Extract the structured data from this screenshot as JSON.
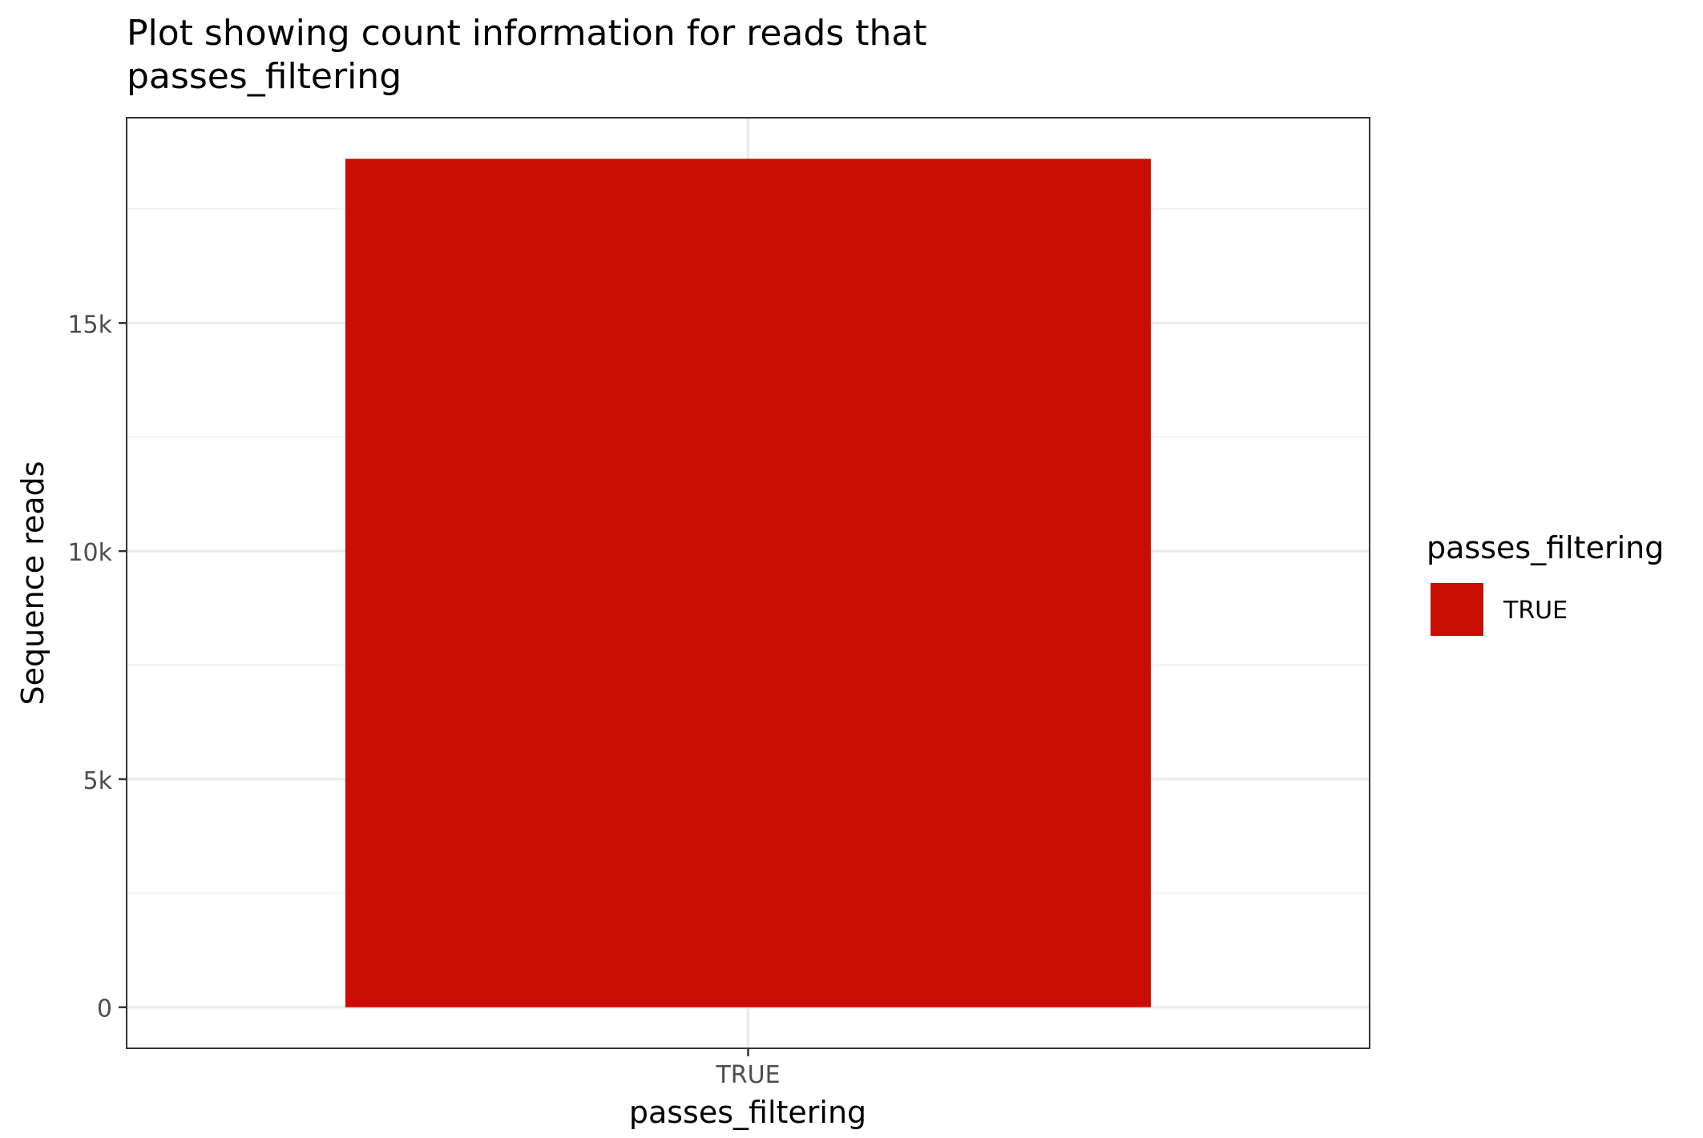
{
  "chart_data": {
    "type": "bar",
    "title": "Plot showing count information for reads that passes_filtering",
    "title_lines": [
      "Plot showing count information for reads that",
      "passes_filtering"
    ],
    "xlabel": "passes_filtering",
    "ylabel": "Sequence reads",
    "categories": [
      "TRUE"
    ],
    "values": [
      18600
    ],
    "ylim": [
      -900,
      19500
    ],
    "yticks": [
      0,
      5000,
      10000,
      15000
    ],
    "ytick_labels": [
      "0",
      "5k",
      "10k",
      "15k"
    ],
    "grid": true,
    "legend": {
      "title": "passes_filtering",
      "position": "right",
      "entries": [
        {
          "label": "TRUE",
          "color": "#c80e00"
        }
      ]
    },
    "colors": {
      "bar": "#c80e00",
      "grid_major": "#ebebeb",
      "grid_minor": "#f2f2f2",
      "panel_border": "#333333",
      "tick_text": "#4d4d4d"
    }
  }
}
